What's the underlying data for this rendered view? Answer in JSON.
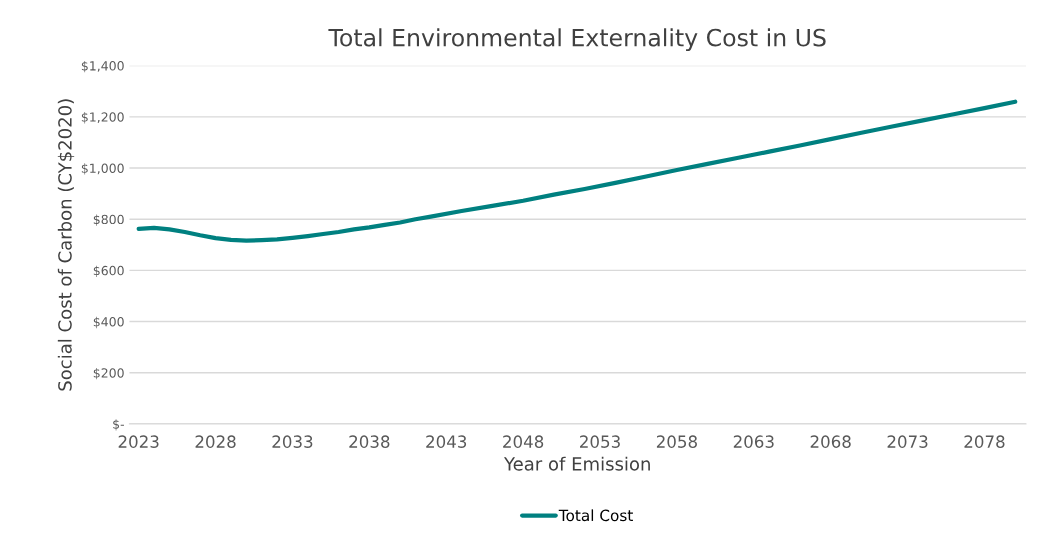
{
  "chart_data": {
    "type": "line",
    "title": "Total Environmental Externality Cost in US",
    "xlabel": "Year of Emission",
    "ylabel": "Social Cost of Carbon (CY$2020)",
    "x": [
      2023,
      2024,
      2025,
      2026,
      2027,
      2028,
      2029,
      2030,
      2031,
      2032,
      2033,
      2034,
      2035,
      2036,
      2037,
      2038,
      2039,
      2040,
      2041,
      2042,
      2044,
      2046,
      2048,
      2050,
      2052,
      2054,
      2056,
      2058,
      2060,
      2062,
      2064,
      2066,
      2068,
      2070,
      2072,
      2074,
      2076,
      2078,
      2080
    ],
    "series": [
      {
        "name": "Total Cost",
        "color": "#008080",
        "values": [
          762,
          766,
          760,
          750,
          737,
          726,
          719,
          716,
          718,
          721,
          727,
          734,
          742,
          750,
          760,
          768,
          778,
          787,
          800,
          810,
          832,
          852,
          872,
          896,
          918,
          942,
          967,
          992,
          1016,
          1040,
          1064,
          1088,
          1113,
          1138,
          1162,
          1186,
          1210,
          1234,
          1259
        ]
      }
    ],
    "xlim": [
      2022.4,
      2080.7
    ],
    "xticks": [
      2023,
      2028,
      2033,
      2038,
      2043,
      2048,
      2053,
      2058,
      2063,
      2068,
      2073,
      2078
    ],
    "ylim": [
      0,
      1400
    ],
    "yticks": [
      {
        "value": 0,
        "label": "$-"
      },
      {
        "value": 200,
        "label": "$200"
      },
      {
        "value": 400,
        "label": "$400"
      },
      {
        "value": 600,
        "label": "$600"
      },
      {
        "value": 800,
        "label": "$800"
      },
      {
        "value": 1000,
        "label": "$1,000"
      },
      {
        "value": 1200,
        "label": "$1,200"
      },
      {
        "value": 1400,
        "label": "$1,400"
      }
    ],
    "grid": "y",
    "legend": "bottom",
    "marker": "none",
    "line_style": "solid"
  }
}
